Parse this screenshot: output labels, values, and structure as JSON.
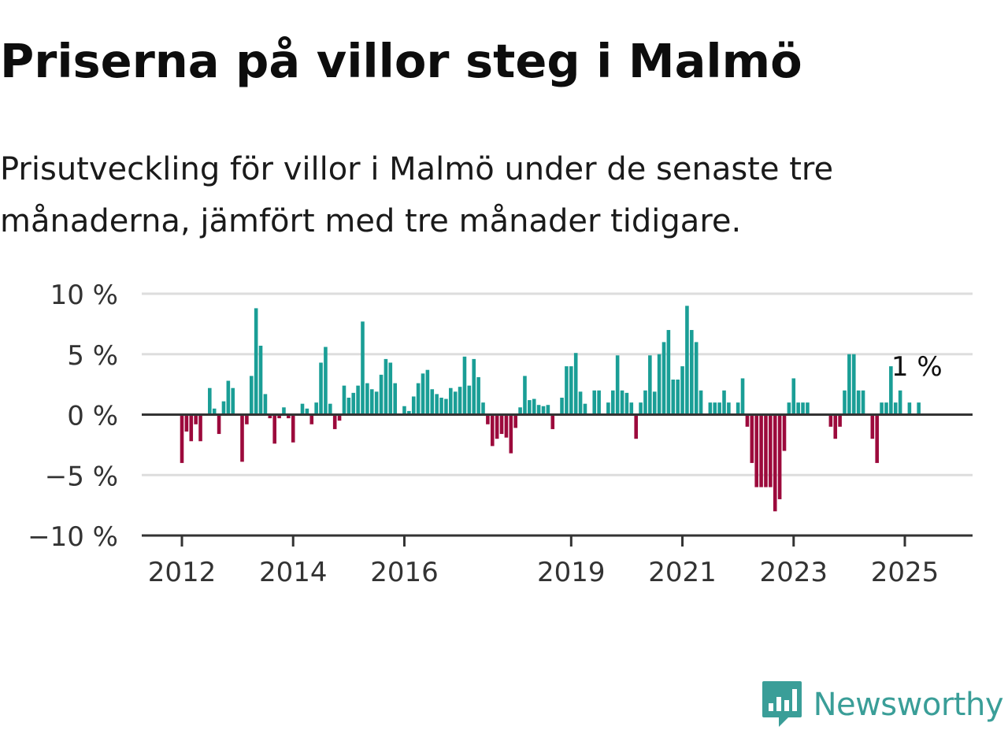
{
  "header": {
    "title": "Priserna på villor steg i Malmö",
    "subtitle": "Prisutveckling för villor i Malmö under de senaste tre månaderna, jämfört med tre månader tidigare."
  },
  "brand": {
    "name": "Newsworthy",
    "logo_icon": "bar-chart-speech-bubble-icon",
    "color": "#3a9e98"
  },
  "colors": {
    "positive": "#1a9e96",
    "negative": "#9c0a3c",
    "grid": "#dddddd",
    "axis": "#444444"
  },
  "chart_data": {
    "type": "bar",
    "title": "",
    "xlabel": "",
    "ylabel": "",
    "ylim": [
      -10,
      10
    ],
    "y_ticks": [
      10,
      5,
      0,
      -5,
      -10
    ],
    "y_tick_labels": [
      "10 %",
      "5 %",
      "0 %",
      "−5 %",
      "−10 %"
    ],
    "x_ticks": [
      {
        "label": "2012",
        "date": "2012-01"
      },
      {
        "label": "2014",
        "date": "2014-01"
      },
      {
        "label": "2016",
        "date": "2016-01"
      },
      {
        "label": "2019",
        "date": "2019-01"
      },
      {
        "label": "2021",
        "date": "2021-01"
      },
      {
        "label": "2023",
        "date": "2023-01"
      },
      {
        "label": "2025",
        "date": "2025-01"
      }
    ],
    "grid": true,
    "start": "2012-01",
    "frequency": "monthly",
    "values": [
      -4,
      -1.4,
      -2.2,
      -0.8,
      -2.2,
      0,
      2.2,
      0.5,
      -1.6,
      1.1,
      2.8,
      2.2,
      0,
      -3.9,
      -0.8,
      3.2,
      8.8,
      5.7,
      1.7,
      -0.3,
      -2.4,
      -0.3,
      0.6,
      -0.3,
      -2.3,
      0,
      0.9,
      0.5,
      -0.8,
      1,
      4.3,
      5.6,
      0.9,
      -1.2,
      -0.5,
      2.4,
      1.4,
      1.8,
      2.4,
      7.7,
      2.6,
      2.1,
      1.9,
      3.3,
      4.6,
      4.3,
      2.6,
      0,
      0.7,
      0.3,
      1.5,
      2.6,
      3.4,
      3.7,
      2.1,
      1.7,
      1.4,
      1.3,
      2.2,
      1.9,
      2.3,
      4.8,
      2.4,
      4.6,
      3.1,
      1,
      -0.8,
      -2.6,
      -2,
      -1.6,
      -1.9,
      -3.2,
      -1.1,
      0.6,
      3.2,
      1.2,
      1.3,
      0.8,
      0.7,
      0.8,
      -1.2,
      0,
      1.4,
      4,
      4,
      5.1,
      1.9,
      0.9,
      0,
      2,
      2,
      0,
      1,
      2,
      4.9,
      2,
      1.8,
      1,
      -2,
      1,
      2,
      4.9,
      1.9,
      5,
      6,
      7,
      2.9,
      2.9,
      4,
      9,
      7,
      6,
      2,
      0,
      1,
      1,
      1,
      2,
      1,
      0,
      1,
      3,
      -1,
      -4,
      -6,
      -6,
      -6,
      -6,
      -8,
      -7,
      -3,
      1,
      3,
      1,
      1,
      1,
      0,
      0,
      0,
      0,
      -1,
      -2,
      -1,
      2,
      5,
      5,
      2,
      2,
      0,
      -2,
      -4,
      1,
      1,
      4,
      1,
      2,
      0,
      1,
      0,
      1
    ],
    "annotation": {
      "text": "1 %",
      "target": "last"
    }
  }
}
